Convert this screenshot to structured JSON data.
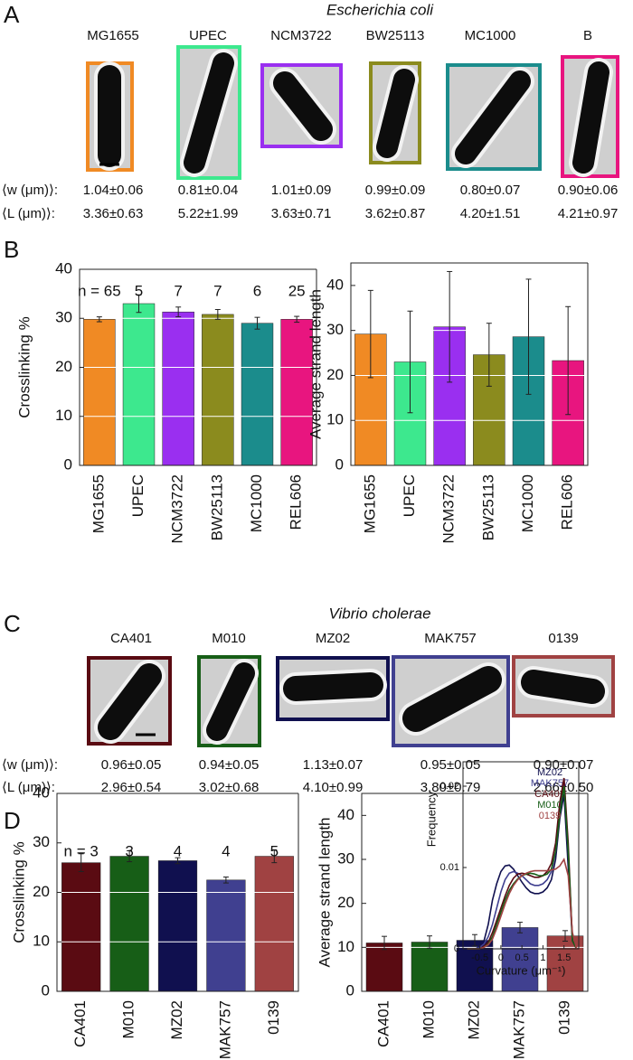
{
  "panel_labels": [
    "A",
    "B",
    "C",
    "D"
  ],
  "panel_a": {
    "title": "Escherichia coli",
    "strains": [
      "MG1655",
      "UPEC",
      "NCM3722",
      "BW25113",
      "MC1000",
      "B"
    ],
    "frame_colors": [
      "#f08a24",
      "#3de88e",
      "#9a2ff0",
      "#8b8b1e",
      "#1b8c8c",
      "#e8157f"
    ],
    "row_labels": [
      "⟨w (μm)⟩:",
      "⟨L (μm)⟩:"
    ],
    "w": [
      "1.04±0.06",
      "0.81±0.04",
      "1.01±0.09",
      "0.99±0.09",
      "0.80±0.07",
      "0.90±0.06"
    ],
    "L": [
      "3.36±0.63",
      "5.22±1.99",
      "3.63±0.71",
      "3.62±0.87",
      "4.20±1.51",
      "4.21±0.97"
    ]
  },
  "panel_c": {
    "title": "Vibrio cholerae",
    "strains": [
      "CA401",
      "M010",
      "MZ02",
      "MAK757",
      "0139"
    ],
    "frame_colors": [
      "#5a0b12",
      "#175e17",
      "#10104f",
      "#404090",
      "#a04242"
    ],
    "row_labels": [
      "⟨w (μm)⟩:",
      "⟨L (μm)⟩:"
    ],
    "w": [
      "0.96±0.05",
      "0.94±0.05",
      "1.13±0.07",
      "0.95±0.05",
      "0.90±0.07"
    ],
    "L": [
      "2.96±0.54",
      "3.02±0.68",
      "4.10±0.99",
      "3.80±0.79",
      "2.66±0.50"
    ]
  },
  "chart_data": [
    {
      "type": "bar",
      "y_label": "Crosslinking %",
      "categories": [
        "MG1655",
        "UPEC",
        "NCM3722",
        "BW25113",
        "MC1000",
        "REL606"
      ],
      "values": [
        29.8,
        33,
        31.3,
        30.8,
        29,
        29.8
      ],
      "errors": [
        0.5,
        1.8,
        1,
        1,
        1.2,
        0.6
      ],
      "colors": [
        "#f08a24",
        "#3de88e",
        "#9a2ff0",
        "#8b8b1e",
        "#1b8c8c",
        "#e8157f"
      ],
      "annotations": [
        "n = 65",
        "5",
        "7",
        "7",
        "6",
        "25"
      ],
      "ylim": [
        0,
        40
      ],
      "yticks": [
        0,
        10,
        20,
        30,
        40
      ],
      "grid": true
    },
    {
      "type": "bar",
      "y_label": "Average strand length",
      "categories": [
        "MG1655",
        "UPEC",
        "NCM3722",
        "BW25113",
        "MC1000",
        "REL606"
      ],
      "values": [
        29.2,
        23,
        30.8,
        24.6,
        28.6,
        23.3
      ],
      "errors": [
        9.7,
        11.3,
        12.3,
        7,
        12.8,
        12
      ],
      "colors": [
        "#f08a24",
        "#3de88e",
        "#9a2ff0",
        "#8b8b1e",
        "#1b8c8c",
        "#e8157f"
      ],
      "ylim": [
        0,
        45
      ],
      "yticks": [
        0,
        10,
        20,
        30,
        40
      ],
      "grid": true
    },
    {
      "type": "bar",
      "y_label": "Crosslinking %",
      "categories": [
        "CA401",
        "M010",
        "MZ02",
        "MAK757",
        "0139"
      ],
      "values": [
        26,
        27.3,
        26.4,
        22.5,
        27.3
      ],
      "errors": [
        1.8,
        1.1,
        0.6,
        0.6,
        1.3
      ],
      "colors": [
        "#5a0b12",
        "#175e17",
        "#10104f",
        "#404090",
        "#a04242"
      ],
      "annotations": [
        "n = 3",
        "3",
        "4",
        "4",
        "5"
      ],
      "ylim": [
        0,
        40
      ],
      "yticks": [
        0,
        10,
        20,
        30,
        40
      ],
      "grid": true
    },
    {
      "type": "bar",
      "y_label": "Average strand length",
      "categories": [
        "CA401",
        "M010",
        "MZ02",
        "MAK757",
        "0139"
      ],
      "values": [
        11,
        11.2,
        11.6,
        14.5,
        12.6
      ],
      "errors": [
        1.5,
        1.4,
        1.3,
        1.2,
        1.2
      ],
      "colors": [
        "#5a0b12",
        "#175e17",
        "#10104f",
        "#404090",
        "#a04242"
      ],
      "ylim": [
        0,
        45
      ],
      "yticks": [
        0,
        10,
        20,
        30,
        40
      ],
      "grid": true
    },
    {
      "type": "line",
      "x_label": "Curvature (μm⁻¹)",
      "y_label": "Frequency",
      "x": [
        -0.8,
        -0.7,
        -0.6,
        -0.5,
        -0.4,
        -0.3,
        -0.2,
        -0.1,
        0,
        0.1,
        0.2,
        0.3,
        0.4,
        0.5,
        0.6,
        0.7,
        0.8,
        0.9,
        1,
        1.1,
        1.2,
        1.3,
        1.4,
        1.5,
        1.6,
        1.7,
        1.8
      ],
      "series": [
        {
          "name": "MZ02",
          "color": "#10104f",
          "values": [
            0,
            0,
            0,
            0.0003,
            0.001,
            0.003,
            0.006,
            0.008,
            0.0095,
            0.0102,
            0.0103,
            0.0098,
            0.009,
            0.0082,
            0.0075,
            0.007,
            0.0068,
            0.0068,
            0.007,
            0.0075,
            0.0085,
            0.011,
            0.016,
            0.019,
            0.01,
            0.001,
            0
          ]
        },
        {
          "name": "MAK757",
          "color": "#404090",
          "values": [
            0,
            0,
            0,
            0.0002,
            0.0006,
            0.0015,
            0.003,
            0.005,
            0.007,
            0.0085,
            0.0093,
            0.0095,
            0.0093,
            0.009,
            0.0085,
            0.008,
            0.0078,
            0.0078,
            0.008,
            0.0085,
            0.0095,
            0.012,
            0.017,
            0.021,
            0.012,
            0.001,
            0
          ]
        },
        {
          "name": "CA401",
          "color": "#5a0b12",
          "values": [
            0,
            0,
            0,
            0,
            0.0003,
            0.0008,
            0.002,
            0.0035,
            0.005,
            0.0065,
            0.0078,
            0.0087,
            0.0092,
            0.0093,
            0.0092,
            0.009,
            0.0088,
            0.0088,
            0.009,
            0.0095,
            0.0105,
            0.013,
            0.018,
            0.021,
            0.013,
            0.001,
            0
          ]
        },
        {
          "name": "M010",
          "color": "#175e17",
          "values": [
            0,
            0,
            0,
            0,
            0.0002,
            0.0006,
            0.0015,
            0.003,
            0.0045,
            0.006,
            0.0072,
            0.008,
            0.0086,
            0.009,
            0.0092,
            0.0093,
            0.0092,
            0.009,
            0.009,
            0.0092,
            0.0098,
            0.012,
            0.0165,
            0.02,
            0.012,
            0.001,
            0
          ]
        },
        {
          "name": "0139",
          "color": "#a04242",
          "values": [
            0,
            0,
            0,
            0,
            0.0002,
            0.0005,
            0.0012,
            0.0025,
            0.004,
            0.0055,
            0.0068,
            0.0078,
            0.0085,
            0.009,
            0.0093,
            0.0095,
            0.0096,
            0.0096,
            0.0096,
            0.0096,
            0.0097,
            0.0098,
            0.0102,
            0.011,
            0.009,
            0.002,
            0
          ]
        }
      ],
      "xlim": [
        -0.9,
        1.85
      ],
      "xticks": [
        -0.5,
        0,
        0.5,
        1,
        1.5
      ],
      "ylim": [
        0,
        0.023
      ],
      "yticks": [
        0,
        0.01,
        0.02
      ]
    }
  ]
}
